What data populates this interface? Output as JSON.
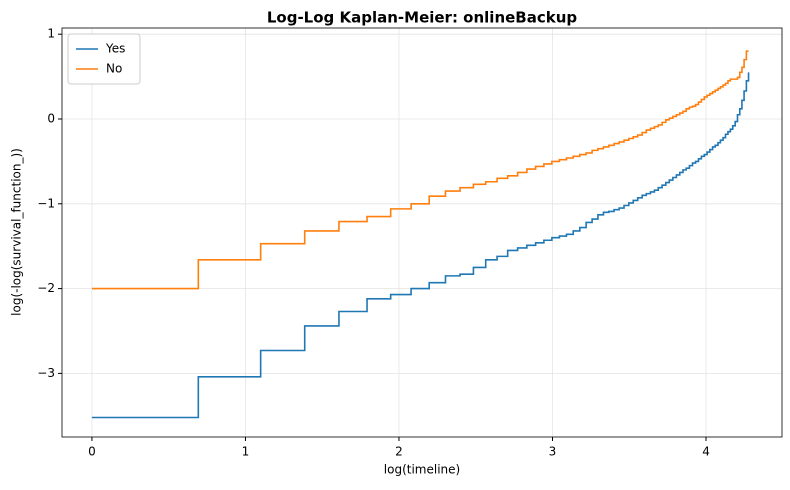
{
  "chart_data": {
    "type": "step",
    "title": "Log-Log Kaplan-Meier: onlineBackup",
    "xlabel": "log(timeline)",
    "ylabel": "log(-log(survival_function_))",
    "x": [
      0,
      0.693,
      1.099,
      1.386,
      1.609,
      1.792,
      1.946,
      2.079,
      2.197,
      2.303,
      2.398,
      2.485,
      2.565,
      2.639,
      2.708,
      2.773,
      2.833,
      2.89,
      2.944,
      2.996,
      3.045,
      3.091,
      3.135,
      3.178,
      3.219,
      3.258,
      3.296,
      3.332,
      3.367,
      3.401,
      3.434,
      3.466,
      3.497,
      3.526,
      3.555,
      3.584,
      3.611,
      3.638,
      3.664,
      3.689,
      3.714,
      3.738,
      3.761,
      3.784,
      3.807,
      3.829,
      3.85,
      3.871,
      3.892,
      3.912,
      3.932,
      3.951,
      3.97,
      3.989,
      4.007,
      4.025,
      4.043,
      4.06,
      4.078,
      4.094,
      4.111,
      4.127,
      4.143,
      4.159,
      4.174,
      4.19,
      4.205,
      4.22,
      4.234,
      4.248,
      4.263,
      4.277
    ],
    "series": [
      {
        "name": "Yes",
        "color": "#1f77b4",
        "values": [
          -3.52,
          -3.04,
          -2.73,
          -2.44,
          -2.27,
          -2.12,
          -2.07,
          -2.0,
          -1.93,
          -1.85,
          -1.83,
          -1.75,
          -1.66,
          -1.62,
          -1.55,
          -1.52,
          -1.49,
          -1.46,
          -1.43,
          -1.4,
          -1.38,
          -1.36,
          -1.32,
          -1.28,
          -1.22,
          -1.18,
          -1.13,
          -1.1,
          -1.09,
          -1.07,
          -1.05,
          -1.02,
          -0.99,
          -0.96,
          -0.93,
          -0.9,
          -0.88,
          -0.86,
          -0.84,
          -0.81,
          -0.78,
          -0.75,
          -0.72,
          -0.69,
          -0.66,
          -0.63,
          -0.6,
          -0.58,
          -0.55,
          -0.52,
          -0.5,
          -0.47,
          -0.44,
          -0.42,
          -0.39,
          -0.36,
          -0.33,
          -0.31,
          -0.28,
          -0.25,
          -0.22,
          -0.18,
          -0.15,
          -0.12,
          -0.08,
          -0.03,
          0.05,
          0.12,
          0.22,
          0.33,
          0.45,
          0.55
        ]
      },
      {
        "name": "No",
        "color": "#ff7f0e",
        "values": [
          -2.0,
          -1.66,
          -1.47,
          -1.32,
          -1.21,
          -1.15,
          -1.06,
          -1.0,
          -0.91,
          -0.85,
          -0.81,
          -0.77,
          -0.74,
          -0.7,
          -0.67,
          -0.63,
          -0.59,
          -0.56,
          -0.53,
          -0.5,
          -0.48,
          -0.46,
          -0.44,
          -0.42,
          -0.4,
          -0.37,
          -0.35,
          -0.33,
          -0.31,
          -0.29,
          -0.27,
          -0.25,
          -0.23,
          -0.21,
          -0.19,
          -0.16,
          -0.13,
          -0.11,
          -0.09,
          -0.07,
          -0.04,
          -0.01,
          0.01,
          0.03,
          0.05,
          0.07,
          0.09,
          0.12,
          0.14,
          0.15,
          0.17,
          0.2,
          0.23,
          0.26,
          0.28,
          0.3,
          0.32,
          0.34,
          0.36,
          0.38,
          0.4,
          0.42,
          0.45,
          0.47,
          0.47,
          0.47,
          0.49,
          0.55,
          0.61,
          0.7,
          0.8,
          0.8
        ]
      }
    ],
    "xlim": [
      -0.195,
      4.495
    ],
    "ylim": [
      -3.75,
      1.073
    ],
    "xticks": [
      0,
      1,
      2,
      3,
      4
    ],
    "yticks": [
      {
        "value": -3,
        "label": "−3"
      },
      {
        "value": -2,
        "label": "−2"
      },
      {
        "value": -1,
        "label": "−1"
      },
      0,
      1
    ],
    "grid": true,
    "legend": "upper left"
  }
}
